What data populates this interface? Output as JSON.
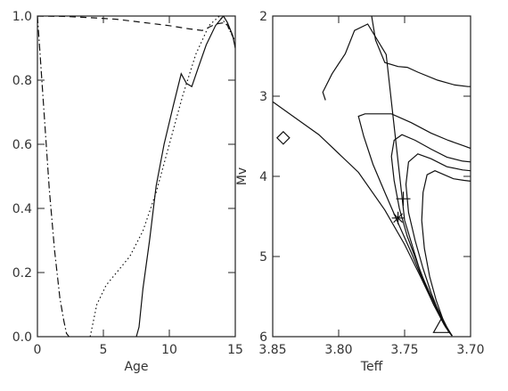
{
  "chart_data": [
    {
      "type": "line",
      "xlabel": "Age",
      "ylabel": "",
      "xlim": [
        0,
        15
      ],
      "ylim": [
        0,
        1
      ],
      "xticks": [
        "0",
        "5",
        "10",
        "15"
      ],
      "yticks": [
        "0.0",
        "0.2",
        "0.4",
        "0.6",
        "0.8",
        "1.0"
      ],
      "grid": false,
      "series": [
        {
          "style": "dash-dot",
          "x": [
            0.0,
            0.2,
            0.5,
            0.9,
            1.3,
            1.7,
            2.0,
            2.2,
            2.4
          ],
          "y": [
            1.0,
            0.88,
            0.7,
            0.46,
            0.27,
            0.12,
            0.05,
            0.01,
            0.0
          ]
        },
        {
          "style": "dotted",
          "x": [
            4.0,
            4.5,
            5.2,
            6.0,
            7.0,
            8.0,
            9.0,
            10.0,
            11.0,
            12.0,
            13.0,
            13.8,
            14.4,
            15.0
          ],
          "y": [
            0.0,
            0.1,
            0.16,
            0.2,
            0.25,
            0.33,
            0.45,
            0.6,
            0.75,
            0.88,
            0.97,
            1.0,
            0.97,
            0.92
          ]
        },
        {
          "style": "solid",
          "x": [
            7.5,
            7.7,
            8.0,
            8.5,
            9.0,
            9.6,
            10.3,
            10.9,
            11.3,
            11.7,
            12.2,
            12.8,
            13.5,
            14.1,
            14.4,
            14.8,
            15.0
          ],
          "y": [
            0.0,
            0.03,
            0.15,
            0.3,
            0.47,
            0.6,
            0.72,
            0.82,
            0.79,
            0.78,
            0.84,
            0.91,
            0.97,
            1.0,
            0.98,
            0.94,
            0.9
          ]
        },
        {
          "style": "dashed",
          "x": [
            0.0,
            2.0,
            4.0,
            6.0,
            8.0,
            10.0,
            11.5,
            12.5,
            13.5,
            14.3,
            15.0
          ],
          "y": [
            1.0,
            0.999,
            0.995,
            0.99,
            0.98,
            0.97,
            0.96,
            0.955,
            0.975,
            0.98,
            0.92
          ]
        }
      ]
    },
    {
      "type": "line",
      "xlabel": "Teff",
      "ylabel": "Mv",
      "xlim": [
        3.85,
        3.7
      ],
      "ylim": [
        6,
        2
      ],
      "xticks": [
        "3.85",
        "3.80",
        "3.75",
        "3.70"
      ],
      "yticks": [
        "2",
        "3",
        "4",
        "5",
        "6"
      ],
      "grid": false,
      "series": [
        {
          "style": "solid",
          "x": [
            3.85,
            3.815,
            3.785,
            3.765,
            3.75,
            3.738,
            3.728,
            3.72,
            3.714
          ],
          "y": [
            3.07,
            3.48,
            3.95,
            4.42,
            4.85,
            5.25,
            5.6,
            5.85,
            5.99
          ]
        },
        {
          "style": "solid",
          "x": [
            3.81,
            3.812,
            3.805,
            3.795,
            3.788,
            3.778,
            3.764,
            3.75,
            3.738,
            3.727,
            3.719,
            3.714
          ],
          "y": [
            3.05,
            2.95,
            2.72,
            2.47,
            2.18,
            2.1,
            2.48,
            4.55,
            5.2,
            5.6,
            5.88,
            5.99
          ]
        },
        {
          "style": "solid",
          "x": [
            3.775,
            3.772,
            3.765,
            3.755,
            3.748,
            3.74,
            3.725,
            3.712,
            3.702,
            3.7
          ],
          "y": [
            2.0,
            2.3,
            2.58,
            2.63,
            2.64,
            2.7,
            2.8,
            2.86,
            2.88,
            2.88
          ]
        },
        {
          "style": "solid",
          "x": [
            3.7,
            3.705,
            3.717,
            3.73,
            3.745,
            3.76,
            3.78,
            3.785
          ],
          "y": [
            3.65,
            3.62,
            3.55,
            3.46,
            3.33,
            3.22,
            3.22,
            3.25
          ],
          "x2": [
            3.785,
            3.781,
            3.774,
            3.765,
            3.755,
            3.745,
            3.736,
            3.728,
            3.72,
            3.714
          ],
          "y2": [
            3.25,
            3.5,
            3.85,
            4.2,
            4.58,
            4.95,
            5.3,
            5.6,
            5.85,
            5.99
          ]
        },
        {
          "style": "solid",
          "x": [
            3.7,
            3.706,
            3.718,
            3.73,
            3.742,
            3.752,
            3.758,
            3.76,
            3.758,
            3.754,
            3.748,
            3.74,
            3.733,
            3.725,
            3.718,
            3.714
          ],
          "y": [
            3.82,
            3.81,
            3.76,
            3.66,
            3.55,
            3.48,
            3.55,
            3.75,
            4.05,
            4.4,
            4.75,
            5.1,
            5.4,
            5.65,
            5.88,
            5.99
          ]
        },
        {
          "style": "solid",
          "x": [
            3.7,
            3.706,
            3.718,
            3.73,
            3.74,
            3.747,
            3.749,
            3.747,
            3.742,
            3.736,
            3.73,
            3.724,
            3.718,
            3.714
          ],
          "y": [
            3.93,
            3.92,
            3.88,
            3.78,
            3.72,
            3.82,
            4.1,
            4.45,
            4.8,
            5.15,
            5.45,
            5.7,
            5.9,
            5.99
          ]
        },
        {
          "style": "solid",
          "x": [
            3.7,
            3.705,
            3.713,
            3.72,
            3.727,
            3.733,
            3.736,
            3.737,
            3.735,
            3.731,
            3.726,
            3.721,
            3.717,
            3.714
          ],
          "y": [
            4.06,
            4.05,
            4.03,
            3.98,
            3.93,
            3.98,
            4.2,
            4.55,
            4.9,
            5.25,
            5.55,
            5.78,
            5.93,
            5.99
          ]
        }
      ],
      "markers": [
        {
          "symbol": "diamond",
          "x": 3.842,
          "y": 3.52
        },
        {
          "symbol": "plus",
          "x": 3.751,
          "y": 4.28
        },
        {
          "symbol": "asterisk",
          "x": 3.755,
          "y": 4.52
        },
        {
          "symbol": "triangle",
          "x": 3.722,
          "y": 5.87
        }
      ]
    }
  ]
}
